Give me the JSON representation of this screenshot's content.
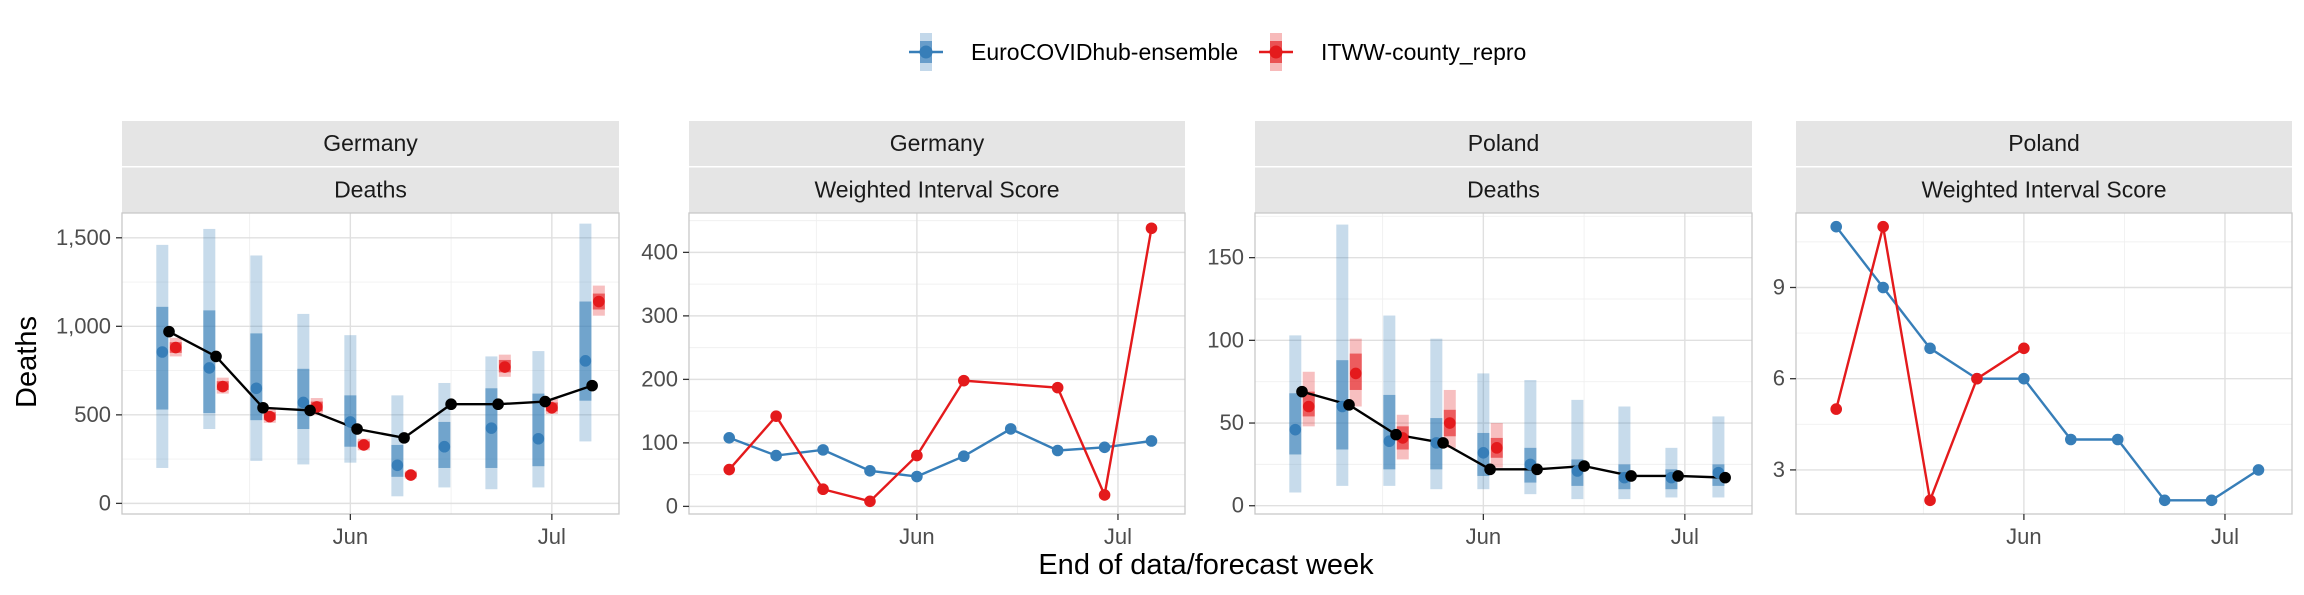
{
  "legend": {
    "items": [
      {
        "label": "EuroCOVIDhub-ensemble",
        "color": "#377eb8"
      },
      {
        "label": "ITWW-county_repro",
        "color": "#e41a1c"
      }
    ]
  },
  "y_axis_title": "Deaths",
  "x_axis_title": "End of data/forecast week",
  "chart_data": [
    {
      "type": "line",
      "panel": "germany-deaths",
      "strip": [
        "Germany",
        "Deaths"
      ],
      "x_ticks": [
        "Jun",
        "Jul"
      ],
      "x_tick_values": [
        32,
        62
      ],
      "y_ticks": [
        "0",
        "500",
        "1,000",
        "1,500"
      ],
      "y_tick_values": [
        0,
        500,
        1000,
        1500
      ],
      "xlim": [
        -2,
        72
      ],
      "ylim": [
        -60,
        1640
      ],
      "observed": {
        "name": "Observed",
        "color": "#000000",
        "x": [
          5,
          12,
          19,
          26,
          33,
          40,
          47,
          54,
          61,
          68
        ],
        "values": [
          970,
          830,
          540,
          525,
          420,
          370,
          560,
          560,
          575,
          665
        ]
      },
      "series": [
        {
          "name": "EuroCOVIDhub-ensemble",
          "color": "#377eb8",
          "x": [
            4,
            11,
            18,
            25,
            32,
            39,
            46,
            53,
            60,
            67
          ],
          "median": [
            855,
            765,
            650,
            570,
            460,
            215,
            320,
            425,
            365,
            805
          ],
          "inner": [
            [
              530,
              1110
            ],
            [
              510,
              1090
            ],
            [
              470,
              960
            ],
            [
              420,
              760
            ],
            [
              320,
              610
            ],
            [
              150,
              330
            ],
            [
              200,
              460
            ],
            [
              200,
              650
            ],
            [
              210,
              620
            ],
            [
              580,
              1140
            ]
          ],
          "outer": [
            [
              200,
              1460
            ],
            [
              420,
              1550
            ],
            [
              240,
              1400
            ],
            [
              220,
              1070
            ],
            [
              230,
              950
            ],
            [
              40,
              610
            ],
            [
              90,
              680
            ],
            [
              80,
              830
            ],
            [
              90,
              860
            ],
            [
              350,
              1580
            ]
          ]
        },
        {
          "name": "ITWW-county_repro",
          "color": "#e41a1c",
          "x": [
            6,
            13,
            20,
            27,
            34,
            41,
            55,
            62,
            69
          ],
          "median": [
            880,
            660,
            490,
            545,
            330,
            160,
            770,
            540,
            1140
          ],
          "inner": [
            [
              850,
              910
            ],
            [
              640,
              690
            ],
            [
              470,
              515
            ],
            [
              520,
              575
            ],
            [
              315,
              350
            ],
            [
              150,
              175
            ],
            [
              740,
              810
            ],
            [
              520,
              570
            ],
            [
              1095,
              1185
            ]
          ],
          "outer": [
            [
              830,
              935
            ],
            [
              620,
              710
            ],
            [
              455,
              535
            ],
            [
              500,
              595
            ],
            [
              300,
              365
            ],
            [
              140,
              185
            ],
            [
              715,
              840
            ],
            [
              505,
              590
            ],
            [
              1060,
              1230
            ]
          ]
        }
      ]
    },
    {
      "type": "line",
      "panel": "germany-wis",
      "strip": [
        "Germany",
        "Weighted Interval Score"
      ],
      "x_ticks": [
        "Jun",
        "Jul"
      ],
      "x_tick_values": [
        32,
        62
      ],
      "y_ticks": [
        "0",
        "100",
        "200",
        "300",
        "400"
      ],
      "y_tick_values": [
        0,
        100,
        200,
        300,
        400
      ],
      "xlim": [
        -2,
        72
      ],
      "ylim": [
        -12,
        462
      ],
      "series": [
        {
          "name": "EuroCOVIDhub-ensemble",
          "color": "#377eb8",
          "x": [
            4,
            11,
            18,
            25,
            32,
            39,
            46,
            53,
            60,
            67
          ],
          "values": [
            108,
            80,
            89,
            56,
            47,
            79,
            122,
            88,
            93,
            103
          ]
        },
        {
          "name": "ITWW-county_repro",
          "color": "#e41a1c",
          "x": [
            4,
            11,
            18,
            25,
            32,
            39,
            53,
            60,
            67
          ],
          "values": [
            58,
            142,
            27,
            8,
            80,
            198,
            187,
            18,
            438
          ]
        }
      ]
    },
    {
      "type": "line",
      "panel": "poland-deaths",
      "strip": [
        "Poland",
        "Deaths"
      ],
      "x_ticks": [
        "Jun",
        "Jul"
      ],
      "x_tick_values": [
        32,
        62
      ],
      "y_ticks": [
        "0",
        "50",
        "100",
        "150"
      ],
      "y_tick_values": [
        0,
        50,
        100,
        150
      ],
      "xlim": [
        -2,
        72
      ],
      "ylim": [
        -5,
        177
      ],
      "observed": {
        "name": "Observed",
        "color": "#000000",
        "x": [
          5,
          12,
          19,
          26,
          33,
          40,
          47,
          54,
          61,
          68
        ],
        "values": [
          69,
          61,
          43,
          38,
          22,
          22,
          24,
          18,
          18,
          17
        ]
      },
      "series": [
        {
          "name": "EuroCOVIDhub-ensemble",
          "color": "#377eb8",
          "x": [
            4,
            11,
            18,
            25,
            32,
            39,
            46,
            53,
            60,
            67
          ],
          "median": [
            46,
            60,
            39,
            38,
            32,
            25,
            21,
            17,
            17,
            20
          ],
          "inner": [
            [
              31,
              68
            ],
            [
              34,
              88
            ],
            [
              22,
              67
            ],
            [
              22,
              53
            ],
            [
              18,
              44
            ],
            [
              14,
              35
            ],
            [
              12,
              28
            ],
            [
              10,
              25
            ],
            [
              10,
              22
            ],
            [
              12,
              25
            ]
          ],
          "outer": [
            [
              8,
              103
            ],
            [
              12,
              170
            ],
            [
              12,
              115
            ],
            [
              10,
              101
            ],
            [
              10,
              80
            ],
            [
              7,
              76
            ],
            [
              4,
              64
            ],
            [
              4,
              60
            ],
            [
              5,
              35
            ],
            [
              5,
              54
            ]
          ]
        },
        {
          "name": "ITWW-county_repro",
          "color": "#e41a1c",
          "x": [
            6,
            13,
            20,
            27,
            34
          ],
          "median": [
            60,
            80,
            41,
            50,
            35
          ],
          "inner": [
            [
              54,
              69
            ],
            [
              70,
              92
            ],
            [
              34,
              48
            ],
            [
              42,
              58
            ],
            [
              29,
              41
            ]
          ],
          "outer": [
            [
              48,
              81
            ],
            [
              60,
              101
            ],
            [
              28,
              55
            ],
            [
              35,
              70
            ],
            [
              23,
              50
            ]
          ]
        }
      ]
    },
    {
      "type": "line",
      "panel": "poland-wis",
      "strip": [
        "Poland",
        "Weighted Interval Score"
      ],
      "x_ticks": [
        "Jun",
        "Jul"
      ],
      "x_tick_values": [
        32,
        62
      ],
      "y_ticks": [
        "3",
        "6",
        "9"
      ],
      "y_tick_values": [
        3,
        6,
        9
      ],
      "xlim": [
        -2,
        72
      ],
      "ylim": [
        1.55,
        11.45
      ],
      "series": [
        {
          "name": "EuroCOVIDhub-ensemble",
          "color": "#377eb8",
          "x": [
            4,
            11,
            18,
            25,
            32,
            39,
            46,
            53,
            60,
            67
          ],
          "values": [
            11,
            9,
            7,
            6,
            6,
            4,
            4,
            2,
            2,
            3
          ]
        },
        {
          "name": "ITWW-county_repro",
          "color": "#e41a1c",
          "x": [
            4,
            11,
            18,
            25,
            32
          ],
          "values": [
            5,
            11,
            2,
            6,
            7
          ]
        }
      ]
    }
  ]
}
